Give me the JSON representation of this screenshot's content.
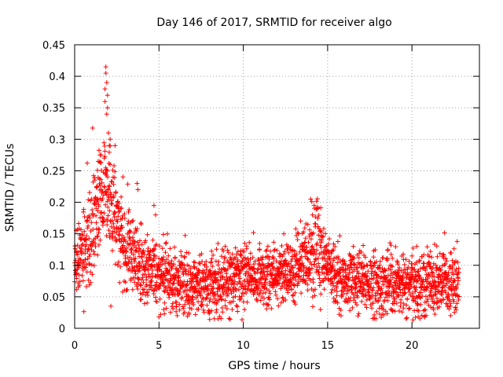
{
  "chart_data": {
    "type": "scatter",
    "title": "Day 146 of 2017, SRMTID for receiver algo",
    "xlabel": "GPS time / hours",
    "ylabel": "SRMTID / TECUs",
    "xlim": [
      0,
      24
    ],
    "ylim": [
      0,
      0.45
    ],
    "xticks": [
      0,
      5,
      10,
      15,
      20
    ],
    "xtick_labels": [
      "0",
      "5",
      "10",
      "15",
      "20"
    ],
    "yticks": [
      0,
      0.05,
      0.1,
      0.15,
      0.2,
      0.25,
      0.3,
      0.35,
      0.4,
      0.45
    ],
    "ytick_labels": [
      "0",
      "0.05",
      "0.1",
      "0.15",
      "0.2",
      "0.25",
      "0.3",
      "0.35",
      "0.4",
      "0.45"
    ],
    "grid": true,
    "marker": "+",
    "color": "#ff0000",
    "series": [
      {
        "name": "SRMTID",
        "profile": [
          [
            0.0,
            0.11
          ],
          [
            0.5,
            0.12
          ],
          [
            1.0,
            0.15
          ],
          [
            1.5,
            0.21
          ],
          [
            1.8,
            0.23
          ],
          [
            2.0,
            0.21
          ],
          [
            2.5,
            0.17
          ],
          [
            3.0,
            0.13
          ],
          [
            3.5,
            0.11
          ],
          [
            4.0,
            0.1
          ],
          [
            5.0,
            0.085
          ],
          [
            6.0,
            0.075
          ],
          [
            7.0,
            0.07
          ],
          [
            8.0,
            0.065
          ],
          [
            9.0,
            0.075
          ],
          [
            10.0,
            0.085
          ],
          [
            11.0,
            0.08
          ],
          [
            12.0,
            0.085
          ],
          [
            13.0,
            0.09
          ],
          [
            13.8,
            0.11
          ],
          [
            14.3,
            0.14
          ],
          [
            14.8,
            0.11
          ],
          [
            15.5,
            0.08
          ],
          [
            17.0,
            0.075
          ],
          [
            18.0,
            0.07
          ],
          [
            19.0,
            0.07
          ],
          [
            20.0,
            0.065
          ],
          [
            21.0,
            0.075
          ],
          [
            22.0,
            0.07
          ],
          [
            22.8,
            0.07
          ]
        ],
        "spread": 0.025,
        "x_end": 22.8,
        "point_count": 2600,
        "highlights": [
          [
            1.85,
            0.415
          ],
          [
            1.85,
            0.405
          ],
          [
            1.9,
            0.39
          ],
          [
            1.8,
            0.38
          ],
          [
            1.95,
            0.37
          ],
          [
            1.8,
            0.36
          ],
          [
            1.95,
            0.35
          ],
          [
            1.9,
            0.34
          ],
          [
            2.0,
            0.31
          ],
          [
            2.1,
            0.3
          ],
          [
            2.05,
            0.29
          ],
          [
            1.5,
            0.275
          ],
          [
            1.4,
            0.265
          ],
          [
            2.1,
            0.26
          ],
          [
            3.7,
            0.23
          ],
          [
            3.75,
            0.22
          ],
          [
            4.7,
            0.195
          ],
          [
            4.8,
            0.18
          ],
          [
            5.5,
            0.15
          ],
          [
            14.0,
            0.205
          ],
          [
            14.2,
            0.195
          ],
          [
            14.4,
            0.19
          ],
          [
            14.1,
            0.18
          ],
          [
            12.4,
            0.15
          ],
          [
            5.0,
            0.018
          ],
          [
            8.5,
            0.015
          ],
          [
            15.8,
            0.02
          ],
          [
            10.6,
            0.152
          ]
        ]
      }
    ]
  }
}
